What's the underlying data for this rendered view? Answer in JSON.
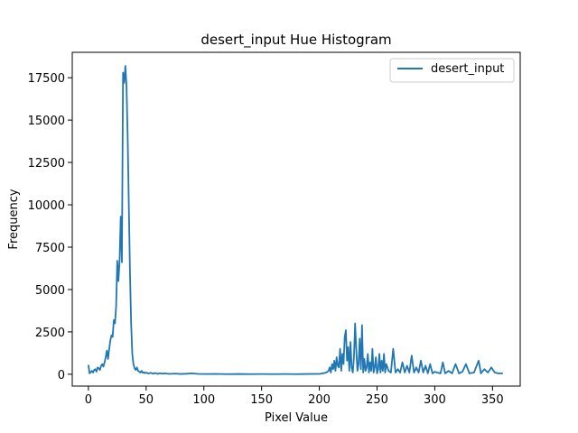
{
  "chart_data": {
    "type": "line",
    "title": "desert_input Hue Histogram",
    "xlabel": "Pixel Value",
    "ylabel": "Frequency",
    "xlim": [
      -14,
      374
    ],
    "ylim": [
      -700,
      19000
    ],
    "xticks": [
      0,
      50,
      100,
      150,
      200,
      250,
      300,
      350
    ],
    "yticks": [
      0,
      2500,
      5000,
      7500,
      10000,
      12500,
      15000,
      17500
    ],
    "grid": false,
    "legend_position": "top-right",
    "series": [
      {
        "name": "desert_input",
        "color": "#1f77b4",
        "points": [
          [
            0,
            550
          ],
          [
            1,
            50
          ],
          [
            2,
            120
          ],
          [
            3,
            200
          ],
          [
            4,
            100
          ],
          [
            5,
            250
          ],
          [
            6,
            300
          ],
          [
            7,
            150
          ],
          [
            8,
            400
          ],
          [
            9,
            350
          ],
          [
            10,
            250
          ],
          [
            11,
            500
          ],
          [
            12,
            600
          ],
          [
            13,
            450
          ],
          [
            14,
            700
          ],
          [
            15,
            1000
          ],
          [
            16,
            1400
          ],
          [
            17,
            900
          ],
          [
            18,
            1500
          ],
          [
            19,
            2000
          ],
          [
            20,
            2300
          ],
          [
            21,
            2200
          ],
          [
            22,
            3200
          ],
          [
            23,
            3000
          ],
          [
            24,
            4000
          ],
          [
            25,
            6700
          ],
          [
            26,
            5500
          ],
          [
            27,
            6700
          ],
          [
            28,
            9300
          ],
          [
            29,
            6600
          ],
          [
            30,
            17800
          ],
          [
            31,
            17200
          ],
          [
            32,
            18200
          ],
          [
            33,
            17000
          ],
          [
            34,
            14000
          ],
          [
            35,
            10000
          ],
          [
            36,
            6000
          ],
          [
            37,
            3000
          ],
          [
            38,
            1200
          ],
          [
            39,
            600
          ],
          [
            40,
            350
          ],
          [
            41,
            250
          ],
          [
            42,
            400
          ],
          [
            43,
            200
          ],
          [
            44,
            150
          ],
          [
            45,
            100
          ],
          [
            46,
            200
          ],
          [
            47,
            80
          ],
          [
            48,
            120
          ],
          [
            49,
            60
          ],
          [
            50,
            100
          ],
          [
            52,
            40
          ],
          [
            54,
            90
          ],
          [
            56,
            30
          ],
          [
            58,
            70
          ],
          [
            60,
            20
          ],
          [
            62,
            60
          ],
          [
            64,
            30
          ],
          [
            66,
            50
          ],
          [
            70,
            20
          ],
          [
            75,
            40
          ],
          [
            80,
            15
          ],
          [
            85,
            30
          ],
          [
            90,
            50
          ],
          [
            95,
            20
          ],
          [
            100,
            10
          ],
          [
            110,
            20
          ],
          [
            120,
            5
          ],
          [
            130,
            15
          ],
          [
            140,
            5
          ],
          [
            150,
            10
          ],
          [
            160,
            5
          ],
          [
            170,
            10
          ],
          [
            180,
            5
          ],
          [
            190,
            15
          ],
          [
            200,
            20
          ],
          [
            203,
            50
          ],
          [
            206,
            100
          ],
          [
            208,
            200
          ],
          [
            209,
            400
          ],
          [
            210,
            100
          ],
          [
            211,
            600
          ],
          [
            212,
            300
          ],
          [
            213,
            800
          ],
          [
            214,
            200
          ],
          [
            215,
            1000
          ],
          [
            216,
            500
          ],
          [
            217,
            400
          ],
          [
            218,
            1500
          ],
          [
            219,
            200
          ],
          [
            220,
            1200
          ],
          [
            221,
            600
          ],
          [
            222,
            2200
          ],
          [
            223,
            2600
          ],
          [
            224,
            800
          ],
          [
            225,
            1600
          ],
          [
            226,
            200
          ],
          [
            227,
            1900
          ],
          [
            228,
            400
          ],
          [
            229,
            100
          ],
          [
            230,
            1000
          ],
          [
            231,
            3000
          ],
          [
            232,
            1500
          ],
          [
            233,
            200
          ],
          [
            234,
            600
          ],
          [
            235,
            2100
          ],
          [
            236,
            300
          ],
          [
            237,
            2900
          ],
          [
            238,
            100
          ],
          [
            239,
            900
          ],
          [
            240,
            200
          ],
          [
            241,
            400
          ],
          [
            242,
            1200
          ],
          [
            243,
            100
          ],
          [
            244,
            700
          ],
          [
            245,
            200
          ],
          [
            246,
            1500
          ],
          [
            247,
            100
          ],
          [
            248,
            400
          ],
          [
            249,
            1000
          ],
          [
            250,
            50
          ],
          [
            251,
            300
          ],
          [
            252,
            1200
          ],
          [
            253,
            100
          ],
          [
            254,
            800
          ],
          [
            255,
            200
          ],
          [
            256,
            1200
          ],
          [
            257,
            100
          ],
          [
            258,
            600
          ],
          [
            260,
            200
          ],
          [
            262,
            100
          ],
          [
            264,
            1500
          ],
          [
            266,
            100
          ],
          [
            268,
            300
          ],
          [
            270,
            100
          ],
          [
            272,
            700
          ],
          [
            274,
            100
          ],
          [
            276,
            500
          ],
          [
            278,
            100
          ],
          [
            280,
            1100
          ],
          [
            282,
            100
          ],
          [
            284,
            400
          ],
          [
            286,
            100
          ],
          [
            288,
            800
          ],
          [
            290,
            100
          ],
          [
            292,
            500
          ],
          [
            294,
            50
          ],
          [
            296,
            600
          ],
          [
            298,
            50
          ],
          [
            300,
            150
          ],
          [
            302,
            100
          ],
          [
            305,
            50
          ],
          [
            307,
            700
          ],
          [
            309,
            50
          ],
          [
            312,
            200
          ],
          [
            315,
            50
          ],
          [
            318,
            600
          ],
          [
            321,
            50
          ],
          [
            324,
            150
          ],
          [
            327,
            600
          ],
          [
            330,
            50
          ],
          [
            334,
            100
          ],
          [
            338,
            800
          ],
          [
            340,
            50
          ],
          [
            343,
            300
          ],
          [
            346,
            100
          ],
          [
            349,
            400
          ],
          [
            352,
            100
          ],
          [
            355,
            50
          ],
          [
            359,
            50
          ]
        ]
      }
    ]
  }
}
